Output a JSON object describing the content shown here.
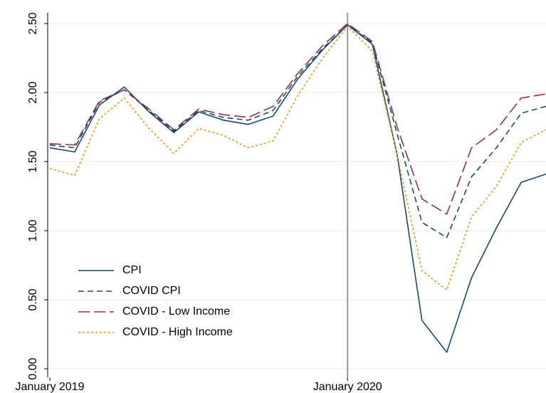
{
  "chart_data": {
    "type": "line",
    "categories": [
      "January 2019",
      null,
      null,
      null,
      null,
      null,
      null,
      null,
      null,
      null,
      null,
      null,
      "January 2020",
      null,
      null,
      null,
      null,
      null,
      null,
      null,
      null
    ],
    "series": [
      {
        "name": "CPI",
        "color": "#1a476f",
        "dash": "none",
        "values": [
          1.6,
          1.57,
          1.91,
          2.04,
          1.86,
          1.71,
          1.86,
          1.8,
          1.77,
          1.83,
          2.1,
          2.31,
          2.49,
          2.35,
          1.55,
          0.35,
          0.12,
          0.66,
          1.02,
          1.35,
          1.41
        ]
      },
      {
        "name": "COVID CPI",
        "color": "#1a476f",
        "dash": "8,5",
        "values": [
          1.62,
          1.6,
          1.93,
          2.02,
          1.87,
          1.72,
          1.87,
          1.82,
          1.8,
          1.87,
          2.12,
          2.32,
          2.49,
          2.36,
          1.7,
          1.06,
          0.95,
          1.39,
          1.6,
          1.85,
          1.9
        ]
      },
      {
        "name": "COVID - Low Income",
        "color": "#90353b",
        "dash": "16,6",
        "values": [
          1.63,
          1.62,
          1.94,
          2.02,
          1.88,
          1.73,
          1.88,
          1.84,
          1.82,
          1.9,
          2.14,
          2.34,
          2.5,
          2.37,
          1.75,
          1.23,
          1.12,
          1.6,
          1.73,
          1.96,
          1.99
        ]
      },
      {
        "name": "COVID - High Income",
        "color": "#e8961c",
        "dash": "3,3",
        "values": [
          1.45,
          1.4,
          1.81,
          1.96,
          1.74,
          1.56,
          1.74,
          1.69,
          1.6,
          1.65,
          1.98,
          2.25,
          2.48,
          2.3,
          1.55,
          0.71,
          0.57,
          1.1,
          1.32,
          1.64,
          1.73
        ]
      }
    ],
    "ylim": [
      0,
      2.5
    ],
    "yticks": [
      {
        "value": 0,
        "label": "0.00"
      },
      {
        "value": 0.5,
        "label": "0.50"
      },
      {
        "value": 1,
        "label": "1.00"
      },
      {
        "value": 1.5,
        "label": "1.50"
      },
      {
        "value": 2,
        "label": "2.00"
      },
      {
        "value": 2.5,
        "label": "2.50"
      }
    ],
    "grid": true,
    "vline_index": 12,
    "legend": "lower left"
  }
}
